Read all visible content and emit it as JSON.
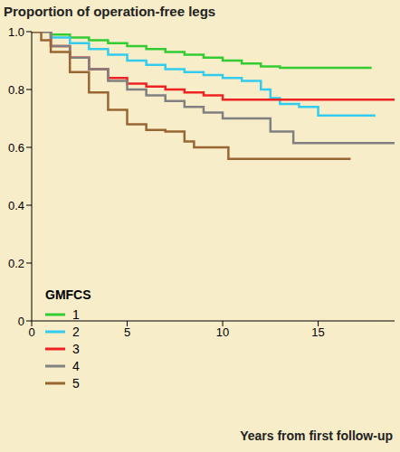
{
  "chart_data": {
    "type": "line",
    "title": "Proportion of operation-free legs",
    "x_label": "Years from first follow-up",
    "legend_title": "GMFCS",
    "legend": "lower left",
    "line_style": "step",
    "grid": false,
    "xlim": [
      0,
      19
    ],
    "xticks": [
      0,
      5,
      10,
      15
    ],
    "ylim": [
      0,
      1
    ],
    "yticks": [
      0,
      0.2,
      0.4,
      0.6,
      0.8,
      {
        "value": 1,
        "label": "1.0"
      }
    ],
    "series": [
      {
        "name": "1",
        "color": "#33cc33",
        "x": [
          0,
          1,
          2,
          3,
          4,
          5,
          6,
          7,
          8,
          9,
          10,
          11,
          12,
          13,
          15,
          17.8
        ],
        "values": [
          1.0,
          0.99,
          0.98,
          0.97,
          0.96,
          0.95,
          0.94,
          0.93,
          0.92,
          0.91,
          0.9,
          0.89,
          0.88,
          0.875,
          0.875,
          0.875
        ]
      },
      {
        "name": "2",
        "color": "#33ccee",
        "x": [
          0,
          1,
          2,
          3,
          4,
          5,
          6,
          7,
          8,
          9,
          10,
          11,
          12,
          12.5,
          13,
          14,
          15,
          18
        ],
        "values": [
          1.0,
          0.98,
          0.96,
          0.94,
          0.92,
          0.9,
          0.885,
          0.87,
          0.86,
          0.85,
          0.84,
          0.83,
          0.8,
          0.77,
          0.75,
          0.74,
          0.71,
          0.71
        ]
      },
      {
        "name": "3",
        "color": "#ee2222",
        "x": [
          0,
          1,
          2,
          3,
          4,
          5,
          6,
          7,
          8,
          9,
          10,
          19
        ],
        "values": [
          1.0,
          0.95,
          0.91,
          0.87,
          0.84,
          0.82,
          0.81,
          0.8,
          0.79,
          0.78,
          0.765,
          0.765
        ]
      },
      {
        "name": "4",
        "color": "#808080",
        "x": [
          0,
          1,
          2,
          3,
          4,
          5,
          6,
          7,
          8,
          9,
          10,
          12.5,
          13.7,
          19
        ],
        "values": [
          1.0,
          0.95,
          0.91,
          0.87,
          0.83,
          0.8,
          0.78,
          0.76,
          0.74,
          0.72,
          0.7,
          0.655,
          0.615,
          0.615
        ]
      },
      {
        "name": "5",
        "color": "#996633",
        "x": [
          0,
          0.5,
          1,
          2,
          3,
          4,
          5,
          6,
          7,
          8,
          8.5,
          10.3,
          16.7
        ],
        "values": [
          1.0,
          0.97,
          0.93,
          0.86,
          0.79,
          0.73,
          0.68,
          0.66,
          0.655,
          0.62,
          0.6,
          0.56,
          0.56
        ]
      }
    ]
  }
}
